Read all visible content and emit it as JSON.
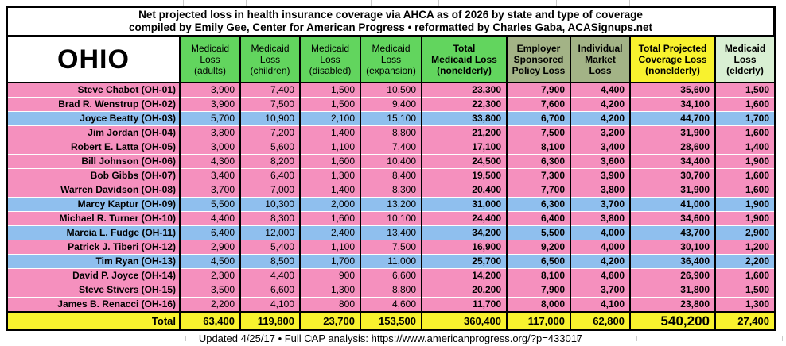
{
  "title": {
    "line1": "Net projected loss in health insurance coverage via AHCA as of 2026 by state and type of coverage",
    "line2": "compiled by Emily Gee, Center for American Progress • reformatted by Charles Gaba, ACASignups.net"
  },
  "state_label": "OHIO",
  "columns": [
    {
      "label": "Medicaid\nLoss\n(adults)",
      "bg": "green",
      "bold": false
    },
    {
      "label": "Medicaid\nLoss\n(children)",
      "bg": "green",
      "bold": false
    },
    {
      "label": "Medicaid\nLoss\n(disabled)",
      "bg": "green",
      "bold": false
    },
    {
      "label": "Medicaid\nLoss\n(expansion)",
      "bg": "green",
      "bold": false
    },
    {
      "label": "Total\nMedicaid Loss\n(nonelderly)",
      "bg": "green",
      "bold": true
    },
    {
      "label": "Employer\nSponsored\nPolicy Loss",
      "bg": "sage",
      "bold": true
    },
    {
      "label": "Individual\nMarket\nLoss",
      "bg": "sage",
      "bold": true
    },
    {
      "label": "Total Projected\nCoverage Loss\n(nonelderly)",
      "bg": "yellow",
      "bold": true
    },
    {
      "label": "Medicaid\nLoss\n(elderly)",
      "bg": "pale_green",
      "bold": true
    }
  ],
  "rows": [
    {
      "name": "Steve Chabot (OH-01)",
      "row_color": "pink",
      "values": [
        "3,900",
        "7,400",
        "1,500",
        "10,500",
        "23,300",
        "7,900",
        "4,400",
        "35,600",
        "1,500"
      ]
    },
    {
      "name": "Brad R. Wenstrup (OH-02)",
      "row_color": "pink",
      "values": [
        "3,900",
        "7,500",
        "1,500",
        "9,400",
        "22,300",
        "7,600",
        "4,200",
        "34,100",
        "1,600"
      ]
    },
    {
      "name": "Joyce Beatty (OH-03)",
      "row_color": "blue",
      "values": [
        "5,700",
        "10,900",
        "2,100",
        "15,100",
        "33,800",
        "6,700",
        "4,200",
        "44,700",
        "1,700"
      ]
    },
    {
      "name": "Jim Jordan (OH-04)",
      "row_color": "pink",
      "values": [
        "3,800",
        "7,200",
        "1,400",
        "8,800",
        "21,200",
        "7,500",
        "3,200",
        "31,900",
        "1,600"
      ]
    },
    {
      "name": "Robert E. Latta (OH-05)",
      "row_color": "pink",
      "values": [
        "3,000",
        "5,600",
        "1,100",
        "7,400",
        "17,100",
        "8,100",
        "3,400",
        "28,600",
        "1,400"
      ]
    },
    {
      "name": "Bill Johnson (OH-06)",
      "row_color": "pink",
      "values": [
        "4,300",
        "8,200",
        "1,600",
        "10,400",
        "24,500",
        "6,300",
        "3,600",
        "34,400",
        "1,900"
      ]
    },
    {
      "name": "Bob Gibbs (OH-07)",
      "row_color": "pink",
      "values": [
        "3,400",
        "6,400",
        "1,300",
        "8,400",
        "19,500",
        "7,300",
        "3,900",
        "30,700",
        "1,600"
      ]
    },
    {
      "name": "Warren Davidson (OH-08)",
      "row_color": "pink",
      "values": [
        "3,700",
        "7,000",
        "1,400",
        "8,300",
        "20,400",
        "7,700",
        "3,800",
        "31,900",
        "1,600"
      ]
    },
    {
      "name": "Marcy Kaptur (OH-09)",
      "row_color": "blue",
      "values": [
        "5,500",
        "10,300",
        "2,000",
        "13,200",
        "31,000",
        "6,300",
        "3,700",
        "41,000",
        "1,900"
      ]
    },
    {
      "name": "Michael R. Turner (OH-10)",
      "row_color": "pink",
      "values": [
        "4,400",
        "8,300",
        "1,600",
        "10,100",
        "24,400",
        "6,400",
        "3,800",
        "34,600",
        "1,900"
      ]
    },
    {
      "name": "Marcia L. Fudge (OH-11)",
      "row_color": "blue",
      "values": [
        "6,400",
        "12,000",
        "2,400",
        "13,400",
        "34,200",
        "5,500",
        "4,000",
        "43,700",
        "2,900"
      ]
    },
    {
      "name": "Patrick J. Tiberi (OH-12)",
      "row_color": "pink",
      "values": [
        "2,900",
        "5,400",
        "1,100",
        "7,500",
        "16,900",
        "9,200",
        "4,000",
        "30,100",
        "1,200"
      ]
    },
    {
      "name": "Tim Ryan (OH-13)",
      "row_color": "blue",
      "values": [
        "4,500",
        "8,500",
        "1,700",
        "11,000",
        "25,700",
        "6,500",
        "4,200",
        "36,400",
        "2,200"
      ]
    },
    {
      "name": "David P. Joyce (OH-14)",
      "row_color": "pink",
      "values": [
        "2,300",
        "4,400",
        "900",
        "6,600",
        "14,200",
        "8,100",
        "4,600",
        "26,900",
        "1,600"
      ]
    },
    {
      "name": "Steve Stivers (OH-15)",
      "row_color": "pink",
      "values": [
        "3,500",
        "6,600",
        "1,300",
        "8,800",
        "20,200",
        "7,900",
        "3,700",
        "31,800",
        "1,500"
      ]
    },
    {
      "name": "James B. Renacci (OH-16)",
      "row_color": "pink",
      "values": [
        "2,200",
        "4,100",
        "800",
        "4,600",
        "11,700",
        "8,000",
        "4,100",
        "23,800",
        "1,300"
      ]
    }
  ],
  "total_row": {
    "label": "Total",
    "values": [
      "63,400",
      "119,800",
      "23,700",
      "153,500",
      "360,400",
      "117,000",
      "62,800",
      "540,200",
      "27,400"
    ]
  },
  "footer": "Updated 4/25/17 • Full CAP analysis: https://www.americanprogress.org/?p=433017",
  "colors": {
    "green": "#62d55e",
    "sage": "#a3b386",
    "yellow": "#f8f22e",
    "pale_green": "#d9efd3",
    "pink": "#f590be",
    "blue": "#8fbfee",
    "border": "#000000"
  },
  "chart_data": {
    "type": "table",
    "title": "Net projected loss in health insurance coverage via AHCA as of 2026 by state and type of coverage",
    "subtitle": "compiled by Emily Gee, Center for American Progress • reformatted by Charles Gaba, ACASignups.net",
    "state": "OHIO",
    "columns": [
      "Medicaid Loss (adults)",
      "Medicaid Loss (children)",
      "Medicaid Loss (disabled)",
      "Medicaid Loss (expansion)",
      "Total Medicaid Loss (nonelderly)",
      "Employer Sponsored Policy Loss",
      "Individual Market Loss",
      "Total Projected Coverage Loss (nonelderly)",
      "Medicaid Loss (elderly)"
    ],
    "districts": [
      "Steve Chabot (OH-01)",
      "Brad R. Wenstrup (OH-02)",
      "Joyce Beatty (OH-03)",
      "Jim Jordan (OH-04)",
      "Robert E. Latta (OH-05)",
      "Bill Johnson (OH-06)",
      "Bob Gibbs (OH-07)",
      "Warren Davidson (OH-08)",
      "Marcy Kaptur (OH-09)",
      "Michael R. Turner (OH-10)",
      "Marcia L. Fudge (OH-11)",
      "Patrick J. Tiberi (OH-12)",
      "Tim Ryan (OH-13)",
      "David P. Joyce (OH-14)",
      "Steve Stivers (OH-15)",
      "James B. Renacci (OH-16)"
    ],
    "values": [
      [
        3900,
        7400,
        1500,
        10500,
        23300,
        7900,
        4400,
        35600,
        1500
      ],
      [
        3900,
        7500,
        1500,
        9400,
        22300,
        7600,
        4200,
        34100,
        1600
      ],
      [
        5700,
        10900,
        2100,
        15100,
        33800,
        6700,
        4200,
        44700,
        1700
      ],
      [
        3800,
        7200,
        1400,
        8800,
        21200,
        7500,
        3200,
        31900,
        1600
      ],
      [
        3000,
        5600,
        1100,
        7400,
        17100,
        8100,
        3400,
        28600,
        1400
      ],
      [
        4300,
        8200,
        1600,
        10400,
        24500,
        6300,
        3600,
        34400,
        1900
      ],
      [
        3400,
        6400,
        1300,
        8400,
        19500,
        7300,
        3900,
        30700,
        1600
      ],
      [
        3700,
        7000,
        1400,
        8300,
        20400,
        7700,
        3800,
        31900,
        1600
      ],
      [
        5500,
        10300,
        2000,
        13200,
        31000,
        6300,
        3700,
        41000,
        1900
      ],
      [
        4400,
        8300,
        1600,
        10100,
        24400,
        6400,
        3800,
        34600,
        1900
      ],
      [
        6400,
        12000,
        2400,
        13400,
        34200,
        5500,
        4000,
        43700,
        2900
      ],
      [
        2900,
        5400,
        1100,
        7500,
        16900,
        9200,
        4000,
        30100,
        1200
      ],
      [
        4500,
        8500,
        1700,
        11000,
        25700,
        6500,
        4200,
        36400,
        2200
      ],
      [
        2300,
        4400,
        900,
        6600,
        14200,
        8100,
        4600,
        26900,
        1600
      ],
      [
        3500,
        6600,
        1300,
        8800,
        20200,
        7900,
        3700,
        31800,
        1500
      ],
      [
        2200,
        4100,
        800,
        4600,
        11700,
        8000,
        4100,
        23800,
        1300
      ]
    ],
    "totals": [
      63400,
      119800,
      23700,
      153500,
      360400,
      117000,
      62800,
      540200,
      27400
    ],
    "footer": "Updated 4/25/17 • Full CAP analysis: https://www.americanprogress.org/?p=433017"
  }
}
